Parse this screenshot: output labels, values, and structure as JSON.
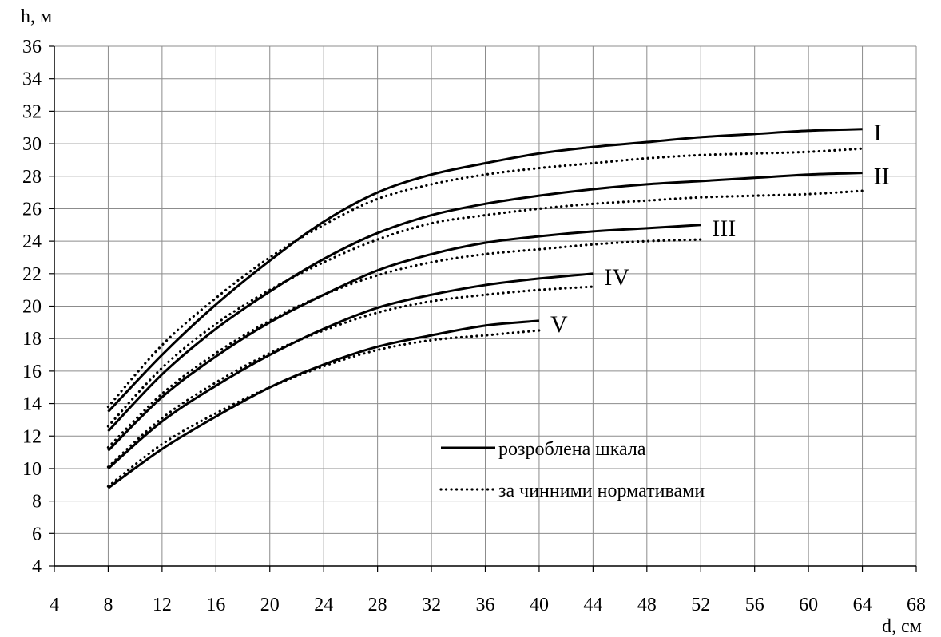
{
  "chart_data": {
    "type": "line",
    "title": "",
    "xlabel": "d, см",
    "ylabel": "h, м",
    "xlim": [
      4,
      68
    ],
    "ylim": [
      4,
      36
    ],
    "xticks": [
      4,
      8,
      12,
      16,
      20,
      24,
      28,
      32,
      36,
      40,
      44,
      48,
      52,
      56,
      60,
      64,
      68
    ],
    "yticks": [
      4,
      6,
      8,
      10,
      12,
      14,
      16,
      18,
      20,
      22,
      24,
      26,
      28,
      30,
      32,
      34,
      36
    ],
    "grid": true,
    "legend_position": "lower-center",
    "legend": [
      {
        "label": "розроблена шкала",
        "style": "solid"
      },
      {
        "label": "за чинними нормативами",
        "style": "dotted"
      }
    ],
    "series": [
      {
        "class_label": "I",
        "style": "solid",
        "x": [
          8,
          12,
          16,
          20,
          24,
          28,
          32,
          36,
          40,
          44,
          48,
          52,
          56,
          60,
          64
        ],
        "y": [
          13.5,
          17.0,
          20.1,
          22.8,
          25.2,
          27.0,
          28.1,
          28.8,
          29.4,
          29.8,
          30.1,
          30.4,
          30.6,
          30.8,
          30.9
        ]
      },
      {
        "class_label": "I",
        "style": "dotted",
        "x": [
          8,
          12,
          16,
          20,
          24,
          28,
          32,
          36,
          40,
          44,
          48,
          52,
          56,
          60,
          64
        ],
        "y": [
          13.8,
          17.6,
          20.5,
          23.0,
          25.0,
          26.6,
          27.5,
          28.1,
          28.5,
          28.8,
          29.1,
          29.3,
          29.4,
          29.5,
          29.7
        ]
      },
      {
        "class_label": "II",
        "style": "solid",
        "x": [
          8,
          12,
          16,
          20,
          24,
          28,
          32,
          36,
          40,
          44,
          48,
          52,
          56,
          60,
          64
        ],
        "y": [
          12.3,
          15.8,
          18.6,
          20.9,
          22.9,
          24.5,
          25.6,
          26.3,
          26.8,
          27.2,
          27.5,
          27.7,
          27.9,
          28.1,
          28.2
        ]
      },
      {
        "class_label": "II",
        "style": "dotted",
        "x": [
          8,
          12,
          16,
          20,
          24,
          28,
          32,
          36,
          40,
          44,
          48,
          52,
          56,
          60,
          64
        ],
        "y": [
          12.6,
          16.2,
          18.9,
          21.0,
          22.7,
          24.1,
          25.1,
          25.6,
          26.0,
          26.3,
          26.5,
          26.7,
          26.8,
          26.9,
          27.1
        ]
      },
      {
        "class_label": "III",
        "style": "solid",
        "x": [
          8,
          12,
          16,
          20,
          24,
          28,
          32,
          36,
          40,
          44,
          48,
          52
        ],
        "y": [
          11.1,
          14.4,
          16.9,
          19.0,
          20.7,
          22.2,
          23.2,
          23.9,
          24.3,
          24.6,
          24.8,
          25.0
        ]
      },
      {
        "class_label": "III",
        "style": "dotted",
        "x": [
          8,
          12,
          16,
          20,
          24,
          28,
          32,
          36,
          40,
          44,
          48,
          52
        ],
        "y": [
          11.3,
          14.6,
          17.1,
          19.1,
          20.7,
          21.9,
          22.7,
          23.2,
          23.5,
          23.8,
          24.0,
          24.1
        ]
      },
      {
        "class_label": "IV",
        "style": "solid",
        "x": [
          8,
          12,
          16,
          20,
          24,
          28,
          32,
          36,
          40,
          44
        ],
        "y": [
          10.0,
          12.9,
          15.1,
          17.0,
          18.6,
          19.9,
          20.7,
          21.3,
          21.7,
          22.0
        ]
      },
      {
        "class_label": "IV",
        "style": "dotted",
        "x": [
          8,
          12,
          16,
          20,
          24,
          28,
          32,
          36,
          40,
          44
        ],
        "y": [
          10.1,
          13.1,
          15.3,
          17.1,
          18.5,
          19.6,
          20.3,
          20.7,
          21.0,
          21.2
        ]
      },
      {
        "class_label": "V",
        "style": "solid",
        "x": [
          8,
          12,
          16,
          20,
          24,
          28,
          32,
          36,
          40
        ],
        "y": [
          8.8,
          11.2,
          13.2,
          15.0,
          16.4,
          17.5,
          18.2,
          18.8,
          19.1
        ]
      },
      {
        "class_label": "V",
        "style": "dotted",
        "x": [
          8,
          12,
          16,
          20,
          24,
          28,
          32,
          36,
          40
        ],
        "y": [
          8.9,
          11.5,
          13.4,
          15.0,
          16.3,
          17.3,
          17.9,
          18.2,
          18.5
        ]
      }
    ],
    "class_labels": [
      "I",
      "II",
      "III",
      "IV",
      "V"
    ]
  }
}
